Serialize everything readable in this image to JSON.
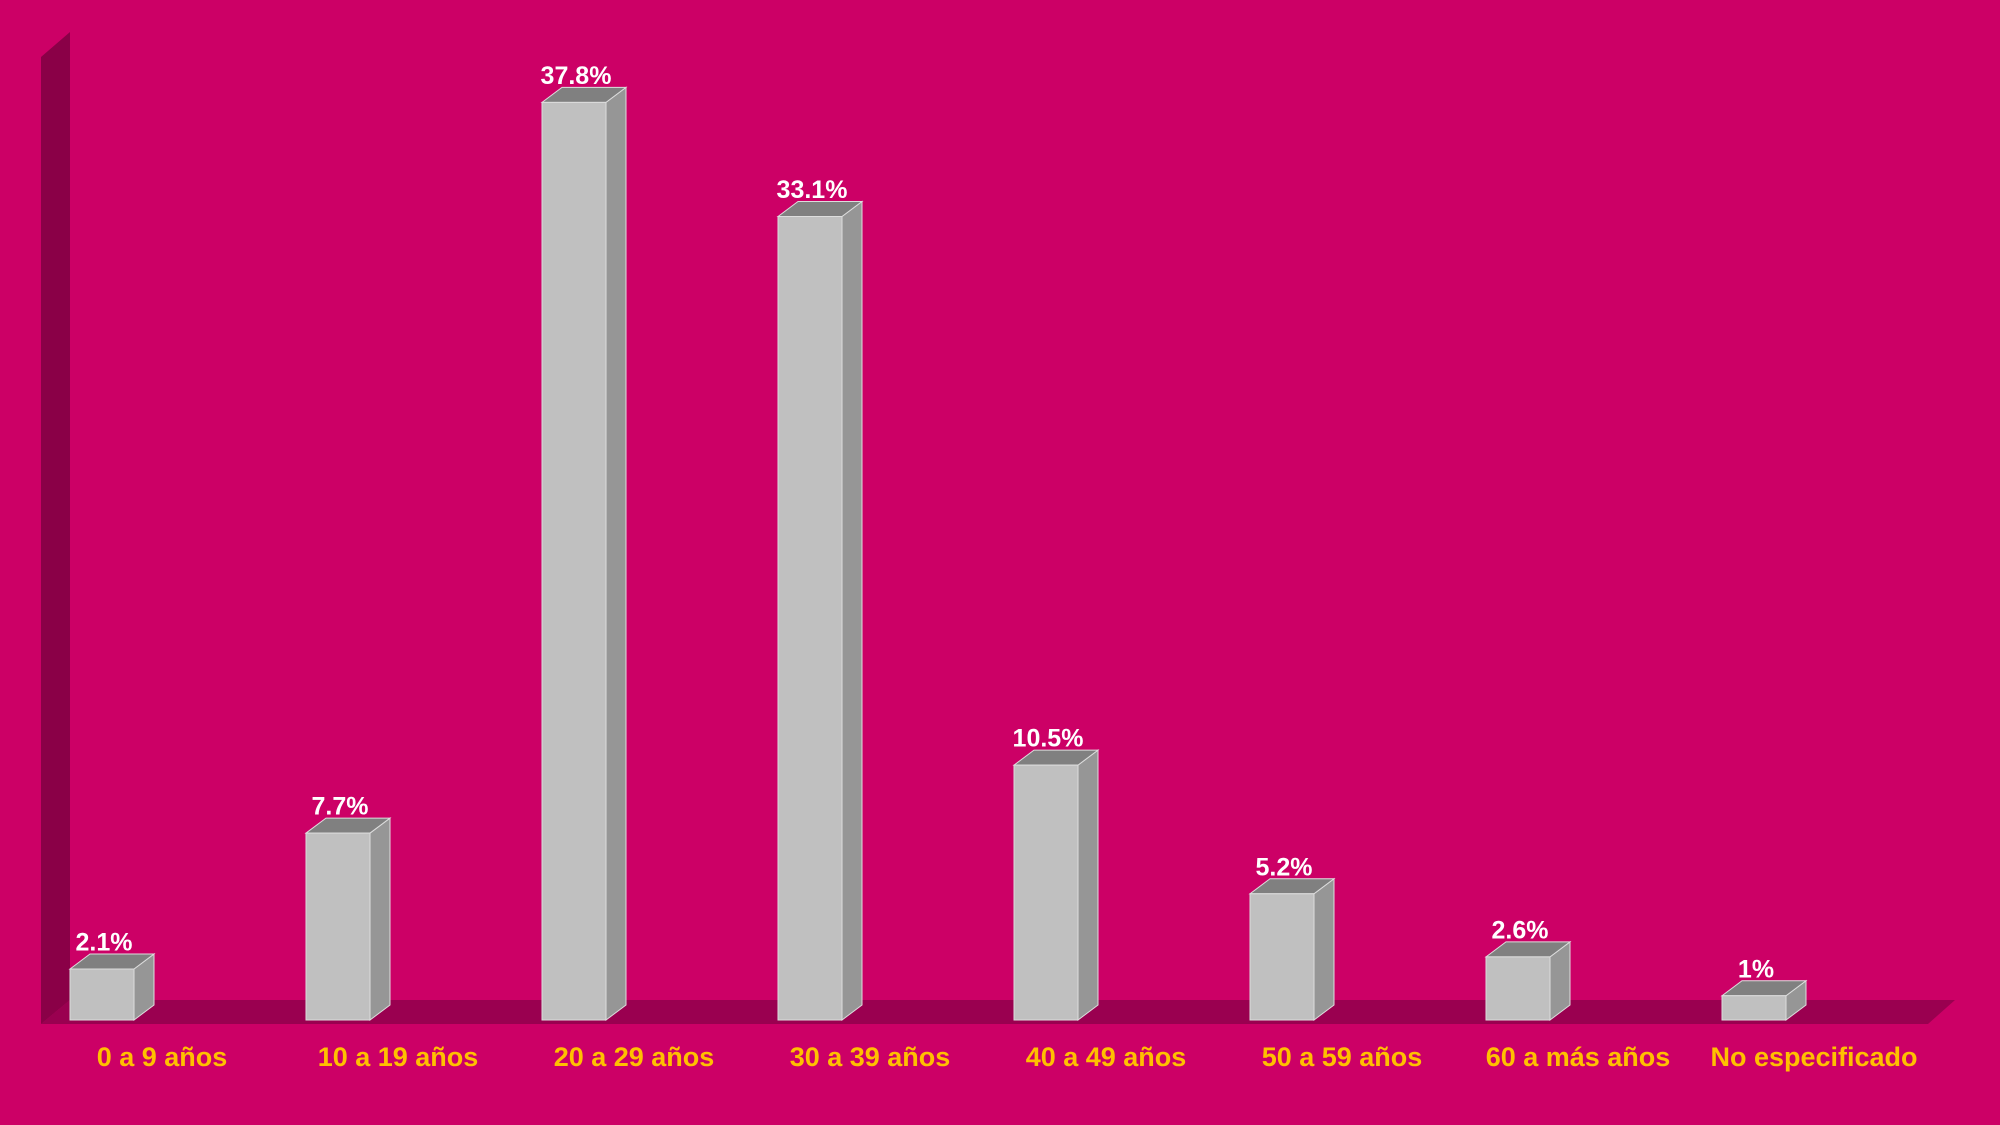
{
  "chart_data": {
    "type": "bar3d",
    "categories": [
      "0 a 9 años",
      "10 a 19 años",
      "20 a 29 años",
      "30 a 39 años",
      "40 a 49 años",
      "50 a 59 años",
      "60 a más años",
      "No especificado"
    ],
    "values": [
      2.1,
      7.7,
      37.8,
      33.1,
      10.5,
      5.2,
      2.6,
      1
    ],
    "value_labels": [
      "2.1%",
      "7.7%",
      "37.8%",
      "33.1%",
      "10.5%",
      "5.2%",
      "2.6%",
      "1%"
    ],
    "color": "#c0c0c0",
    "ylim": [
      0,
      40
    ]
  }
}
